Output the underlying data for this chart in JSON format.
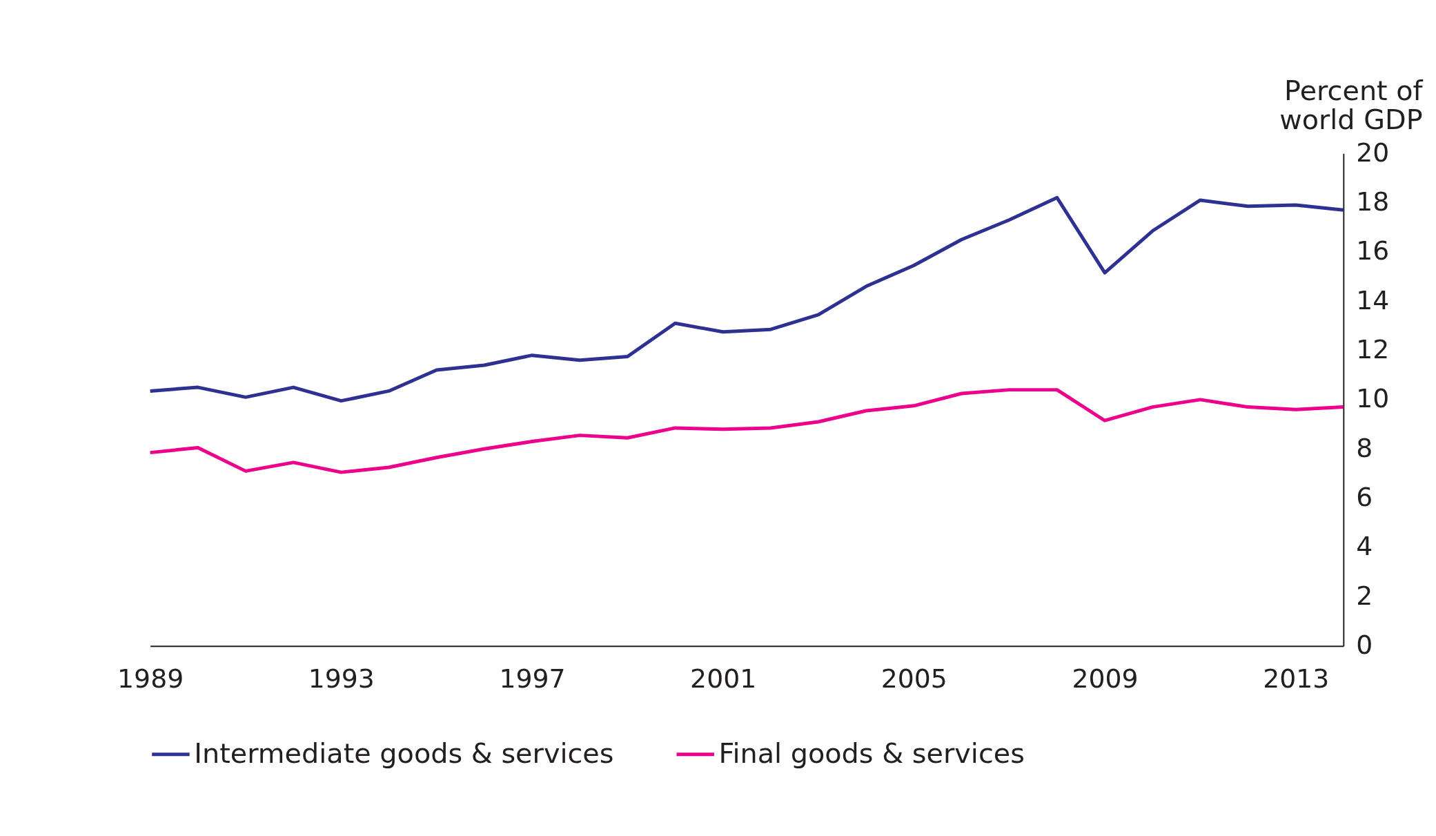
{
  "chart_data": {
    "type": "line",
    "ylabel": "Percent of world GDP",
    "x": [
      1989,
      1990,
      1991,
      1992,
      1993,
      1994,
      1995,
      1996,
      1997,
      1998,
      1999,
      2000,
      2001,
      2002,
      2003,
      2004,
      2005,
      2006,
      2007,
      2008,
      2009,
      2010,
      2011,
      2012,
      2013,
      2014
    ],
    "series": [
      {
        "name": "Intermediate goods & services",
        "color": "#2e3192",
        "values": [
          10.35,
          10.5,
          10.1,
          10.5,
          9.95,
          10.35,
          11.2,
          11.4,
          11.8,
          11.6,
          11.75,
          13.1,
          12.75,
          12.85,
          13.45,
          14.6,
          15.45,
          16.5,
          17.3,
          18.2,
          15.15,
          16.85,
          18.1,
          17.85,
          17.9,
          17.7
        ]
      },
      {
        "name": "Final goods & services",
        "color": "#ec008c",
        "values": [
          7.85,
          8.05,
          7.1,
          7.45,
          7.05,
          7.25,
          7.65,
          8.0,
          8.3,
          8.55,
          8.45,
          8.85,
          8.8,
          8.85,
          9.1,
          9.55,
          9.75,
          10.25,
          10.4,
          10.4,
          9.15,
          9.7,
          10.0,
          9.7,
          9.6,
          9.7
        ]
      }
    ],
    "xlim": [
      1989,
      2014
    ],
    "xticks": [
      1989,
      1993,
      1997,
      2001,
      2005,
      2009,
      2013
    ],
    "ylim": [
      0,
      20
    ],
    "yticks": [
      0,
      2,
      4,
      6,
      8,
      10,
      12,
      14,
      16,
      18,
      20
    ],
    "grid": false,
    "legend": "bottom",
    "marker": "none",
    "line_style": "solid"
  }
}
